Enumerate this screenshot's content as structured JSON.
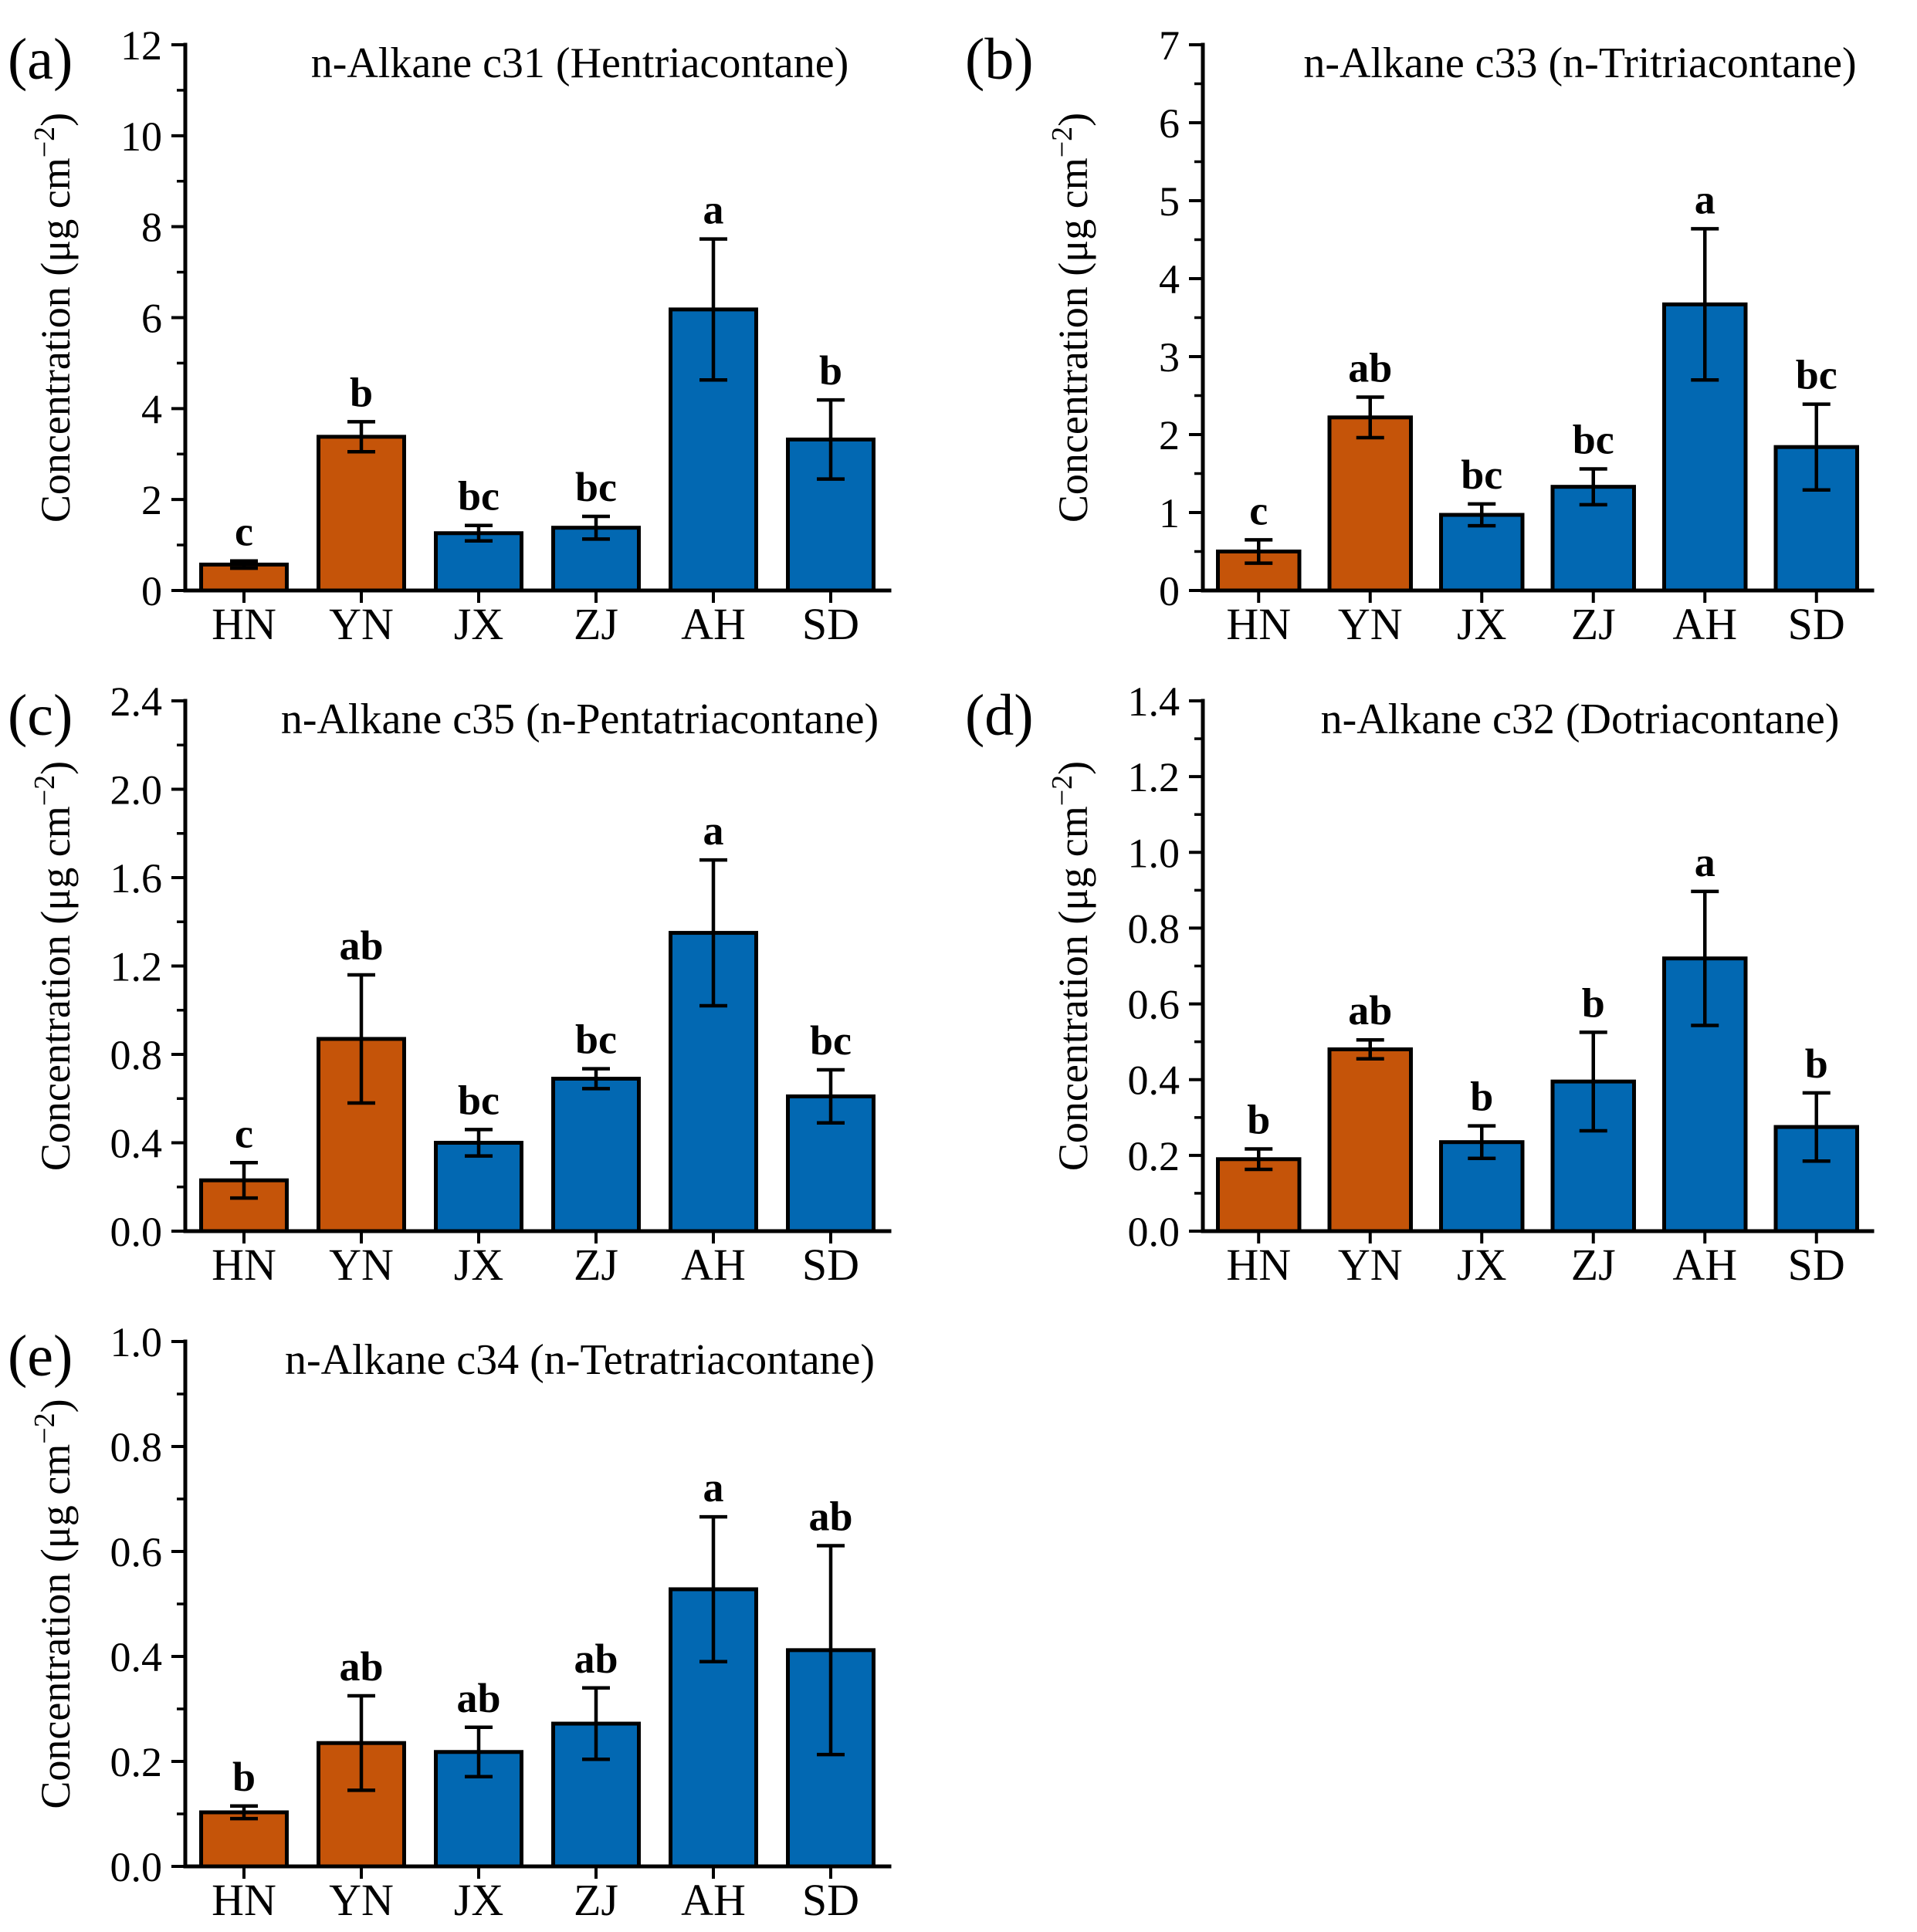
{
  "figure": {
    "background": "#FFFFFF",
    "axis_color": "#000000",
    "orange_hex": "#C55409",
    "blue_hex": "#0268B2",
    "categories": [
      "HN",
      "YN",
      "JX",
      "ZJ",
      "AH",
      "SD"
    ],
    "shared_ylabel": "Concentration (μg cm⁻²)"
  },
  "chart_data": [
    {
      "type": "bar",
      "panel_label": "(a)",
      "title": "n-Alkane c31 (Hentriacontane)",
      "ylabel": "Concentration (μg cm⁻²)",
      "xlabel": "",
      "categories": [
        "HN",
        "YN",
        "JX",
        "ZJ",
        "AH",
        "SD"
      ],
      "values": [
        0.57,
        3.38,
        1.26,
        1.38,
        6.18,
        3.32
      ],
      "errors": [
        0.08,
        0.33,
        0.17,
        0.25,
        1.55,
        0.87
      ],
      "sig_letters": [
        "c",
        "b",
        "bc",
        "bc",
        "a",
        "b"
      ],
      "bar_colors": [
        "#C55409",
        "#C55409",
        "#0268B2",
        "#0268B2",
        "#0268B2",
        "#0268B2"
      ],
      "ylim": [
        0,
        12
      ],
      "ytick_step": 2,
      "ydecimals": 0,
      "grid": false,
      "legend": "none"
    },
    {
      "type": "bar",
      "panel_label": "(b)",
      "title": "n-Alkane c33 (n-Tritriacontane)",
      "ylabel": "Concentration (μg cm⁻²)",
      "xlabel": "",
      "categories": [
        "HN",
        "YN",
        "JX",
        "ZJ",
        "AH",
        "SD"
      ],
      "values": [
        0.5,
        2.22,
        0.97,
        1.33,
        3.67,
        1.84
      ],
      "errors": [
        0.15,
        0.26,
        0.14,
        0.23,
        0.97,
        0.55
      ],
      "sig_letters": [
        "c",
        "ab",
        "bc",
        "bc",
        "a",
        "bc"
      ],
      "bar_colors": [
        "#C55409",
        "#C55409",
        "#0268B2",
        "#0268B2",
        "#0268B2",
        "#0268B2"
      ],
      "ylim": [
        0,
        7
      ],
      "ytick_step": 1,
      "ydecimals": 0,
      "grid": false,
      "legend": "none"
    },
    {
      "type": "bar",
      "panel_label": "(c)",
      "title": "n-Alkane c35 (n-Pentatriacontane)",
      "ylabel": "Concentration (μg cm⁻²)",
      "xlabel": "",
      "categories": [
        "HN",
        "YN",
        "JX",
        "ZJ",
        "AH",
        "SD"
      ],
      "values": [
        0.23,
        0.87,
        0.4,
        0.69,
        1.35,
        0.61
      ],
      "errors": [
        0.08,
        0.29,
        0.06,
        0.045,
        0.33,
        0.12
      ],
      "sig_letters": [
        "c",
        "ab",
        "bc",
        "bc",
        "a",
        "bc"
      ],
      "bar_colors": [
        "#C55409",
        "#C55409",
        "#0268B2",
        "#0268B2",
        "#0268B2",
        "#0268B2"
      ],
      "ylim": [
        0,
        2.4
      ],
      "ytick_step": 0.4,
      "ydecimals": 1,
      "grid": false,
      "legend": "none"
    },
    {
      "type": "bar",
      "panel_label": "(d)",
      "title": "n-Alkane c32 (Dotriacontane)",
      "ylabel": "Concentration (μg cm⁻²)",
      "xlabel": "",
      "categories": [
        "HN",
        "YN",
        "JX",
        "ZJ",
        "AH",
        "SD"
      ],
      "values": [
        0.19,
        0.48,
        0.235,
        0.395,
        0.72,
        0.275
      ],
      "errors": [
        0.027,
        0.025,
        0.043,
        0.13,
        0.177,
        0.09
      ],
      "sig_letters": [
        "b",
        "ab",
        "b",
        "b",
        "a",
        "b"
      ],
      "bar_colors": [
        "#C55409",
        "#C55409",
        "#0268B2",
        "#0268B2",
        "#0268B2",
        "#0268B2"
      ],
      "ylim": [
        0,
        1.4
      ],
      "ytick_step": 0.2,
      "ydecimals": 1,
      "grid": false,
      "legend": "none"
    },
    {
      "type": "bar",
      "panel_label": "(e)",
      "title": "n-Alkane c34 (n-Tetratriacontane)",
      "ylabel": "Concentration (μg cm⁻²)",
      "xlabel": "",
      "categories": [
        "HN",
        "YN",
        "JX",
        "ZJ",
        "AH",
        "SD"
      ],
      "values": [
        0.103,
        0.235,
        0.218,
        0.272,
        0.528,
        0.412
      ],
      "errors": [
        0.012,
        0.09,
        0.047,
        0.068,
        0.138,
        0.199
      ],
      "sig_letters": [
        "b",
        "ab",
        "ab",
        "ab",
        "a",
        "ab"
      ],
      "bar_colors": [
        "#C55409",
        "#C55409",
        "#0268B2",
        "#0268B2",
        "#0268B2",
        "#0268B2"
      ],
      "ylim": [
        0,
        1.0
      ],
      "ytick_step": 0.2,
      "ydecimals": 1,
      "grid": false,
      "legend": "none"
    }
  ]
}
